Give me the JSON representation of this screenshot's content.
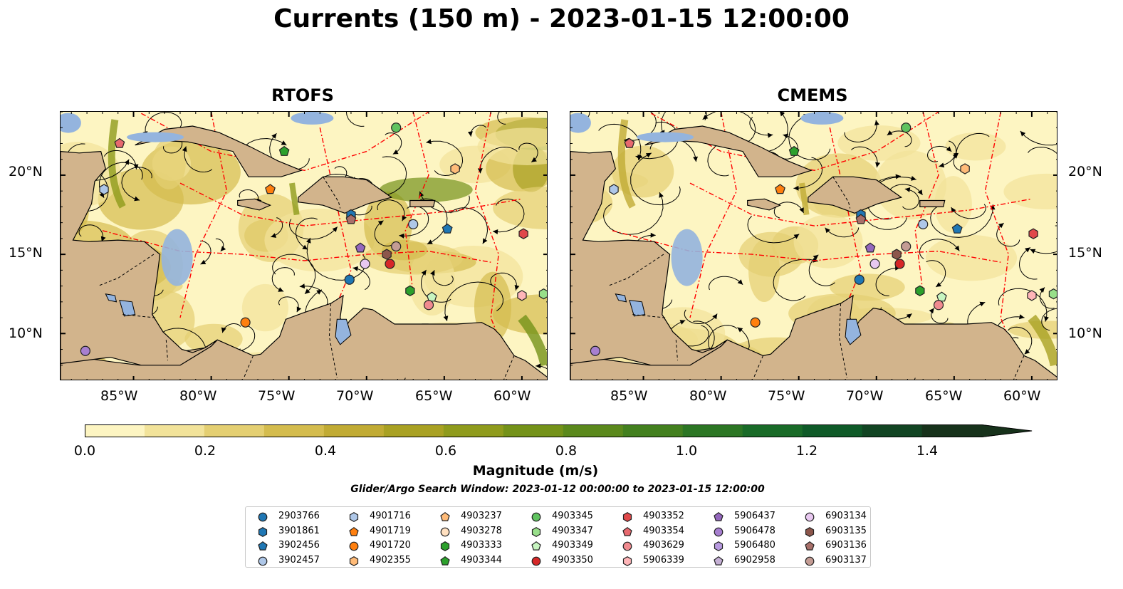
{
  "title": "Currents (150 m) - 2023-01-15 12:00:00",
  "panels": {
    "left": {
      "title": "RTOFS"
    },
    "right": {
      "title": "CMEMS"
    }
  },
  "axes": {
    "x_ticks": [
      "85°W",
      "80°W",
      "75°W",
      "70°W",
      "65°W",
      "60°W"
    ],
    "y_ticks": [
      "20°N",
      "15°N",
      "10°N"
    ],
    "lon_range": [
      -89.7,
      -58.3
    ],
    "lat_range": [
      7.0,
      24.0
    ]
  },
  "colorbar": {
    "label": "Magnitude (m/s)",
    "ticks": [
      "0.0",
      "0.2",
      "0.4",
      "0.6",
      "0.8",
      "1.0",
      "1.2",
      "1.4"
    ],
    "range": [
      0.0,
      1.5
    ],
    "extend": "max",
    "colors": [
      "#fdf5c2",
      "#f2e39a",
      "#e4cf72",
      "#d4bc4e",
      "#c1ab34",
      "#a9a123",
      "#8f9b1c",
      "#749219",
      "#5b891c",
      "#43801f",
      "#2c7624",
      "#196b28",
      "#0f5a28",
      "#124523",
      "#17321b"
    ]
  },
  "search_window": "Glider/Argo Search Window: 2023-01-12 00:00:00 to 2023-01-15 12:00:00",
  "map_colors": {
    "land": "#d2b48c",
    "water": "#94b4de",
    "contour": "#555555",
    "eez_line": "#ff0000",
    "streamline": "#000000"
  },
  "legend": [
    {
      "id": "2903766",
      "marker": "circle",
      "color": "#1f77b4"
    },
    {
      "id": "3901861",
      "marker": "hexagon",
      "color": "#1f77b4"
    },
    {
      "id": "3902456",
      "marker": "pentagon",
      "color": "#1f77b4"
    },
    {
      "id": "3902457",
      "marker": "circle",
      "color": "#aec7e8"
    },
    {
      "id": "4901716",
      "marker": "hexagon",
      "color": "#aec7e8"
    },
    {
      "id": "4901719",
      "marker": "pentagon",
      "color": "#ff7f0e"
    },
    {
      "id": "4901720",
      "marker": "circle",
      "color": "#ff7f0e"
    },
    {
      "id": "4902355",
      "marker": "hexagon",
      "color": "#ffbb78"
    },
    {
      "id": "4903237",
      "marker": "pentagon",
      "color": "#ffbb78"
    },
    {
      "id": "4903278",
      "marker": "circle",
      "color": "#ffe0c0"
    },
    {
      "id": "4903333",
      "marker": "hexagon",
      "color": "#2ca02c"
    },
    {
      "id": "4903344",
      "marker": "pentagon",
      "color": "#2ca02c"
    },
    {
      "id": "4903345",
      "marker": "circle",
      "color": "#5fc35f"
    },
    {
      "id": "4903347",
      "marker": "hexagon",
      "color": "#98df8a"
    },
    {
      "id": "4903349",
      "marker": "pentagon",
      "color": "#c7f5c0"
    },
    {
      "id": "4903350",
      "marker": "circle",
      "color": "#d62728"
    },
    {
      "id": "4903352",
      "marker": "hexagon",
      "color": "#e0484a"
    },
    {
      "id": "4903354",
      "marker": "pentagon",
      "color": "#e7696e"
    },
    {
      "id": "4903629",
      "marker": "circle",
      "color": "#f08a8f"
    },
    {
      "id": "5906339",
      "marker": "hexagon",
      "color": "#ffb5b8"
    },
    {
      "id": "5906437",
      "marker": "pentagon",
      "color": "#9467bd"
    },
    {
      "id": "5906478",
      "marker": "circle",
      "color": "#a77fd0"
    },
    {
      "id": "5906480",
      "marker": "hexagon",
      "color": "#b89ae0"
    },
    {
      "id": "6902958",
      "marker": "pentagon",
      "color": "#c5b0d5"
    },
    {
      "id": "6903134",
      "marker": "circle",
      "color": "#e8c8f0"
    },
    {
      "id": "6903135",
      "marker": "hexagon",
      "color": "#8c564b"
    },
    {
      "id": "6903136",
      "marker": "pentagon",
      "color": "#a8706a"
    },
    {
      "id": "6903137",
      "marker": "circle",
      "color": "#c49c94"
    }
  ],
  "floats": [
    {
      "id": "4903354",
      "lon": -85.9,
      "lat": 22.0
    },
    {
      "id": "4901716",
      "lon": -86.9,
      "lat": 19.1
    },
    {
      "id": "4903344",
      "lon": -75.3,
      "lat": 21.5
    },
    {
      "id": "4903345",
      "lon": -68.1,
      "lat": 23.0
    },
    {
      "id": "4902355",
      "lon": -64.3,
      "lat": 20.4
    },
    {
      "id": "4901719",
      "lon": -76.2,
      "lat": 19.1
    },
    {
      "id": "3901861",
      "lon": -71.0,
      "lat": 17.5
    },
    {
      "id": "6903136",
      "lon": -71.0,
      "lat": 17.2
    },
    {
      "id": "3902457",
      "lon": -67.0,
      "lat": 16.9
    },
    {
      "id": "3902456",
      "lon": -64.8,
      "lat": 16.6
    },
    {
      "id": "4903352",
      "lon": -59.9,
      "lat": 16.3
    },
    {
      "id": "5906437",
      "lon": -70.4,
      "lat": 15.4
    },
    {
      "id": "6903137",
      "lon": -68.1,
      "lat": 15.5
    },
    {
      "id": "6903135",
      "lon": -68.7,
      "lat": 15.0
    },
    {
      "id": "4903350",
      "lon": -68.5,
      "lat": 14.4
    },
    {
      "id": "6903134",
      "lon": -70.1,
      "lat": 14.4
    },
    {
      "id": "2903766",
      "lon": -71.1,
      "lat": 13.4
    },
    {
      "id": "4903333",
      "lon": -67.2,
      "lat": 12.7
    },
    {
      "id": "4903349",
      "lon": -65.8,
      "lat": 12.3
    },
    {
      "id": "4903629",
      "lon": -66.0,
      "lat": 11.8
    },
    {
      "id": "5906339",
      "lon": -60.0,
      "lat": 12.4
    },
    {
      "id": "4903347",
      "lon": -58.6,
      "lat": 12.5
    },
    {
      "id": "4901720",
      "lon": -77.8,
      "lat": 10.7
    },
    {
      "id": "5906478",
      "lon": -88.1,
      "lat": 8.9
    }
  ]
}
